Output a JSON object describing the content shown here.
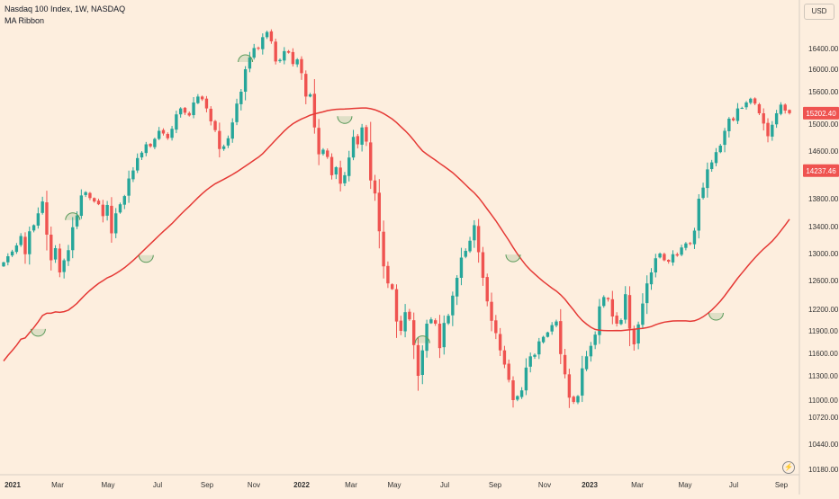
{
  "header": {
    "title": "Nasdaq 100 Index, 1W, NASDAQ",
    "indicator": "MA Ribbon"
  },
  "currency": "USD",
  "colors": {
    "background": "#fdeede",
    "up": "#26a69a",
    "down": "#ef5350",
    "ma": "#e53935",
    "marker": "#5a9a5a",
    "price_label": "#ef5350",
    "ma_label": "#ef5350"
  },
  "chart_data": {
    "type": "candlestick",
    "timeframe": "1W",
    "y_axis": {
      "ticks": [
        "10180.00",
        "10440.00",
        "10720.00",
        "11000.00",
        "11300.00",
        "11600.00",
        "11900.00",
        "12200.00",
        "12600.00",
        "13000.00",
        "13400.00",
        "13800.00",
        "14200.00",
        "14600.00",
        "15000.00",
        "15600.00",
        "16000.00",
        "16400.00"
      ],
      "range": [
        10180,
        16900
      ]
    },
    "x_axis": {
      "ticks": [
        "2021",
        "Mar",
        "May",
        "Jul",
        "Sep",
        "Nov",
        "2022",
        "Mar",
        "May",
        "Jul",
        "Sep",
        "Nov",
        "2023",
        "Mar",
        "May",
        "Jul",
        "Sep"
      ],
      "bold_ticks": [
        "2021",
        "2022",
        "2023"
      ]
    },
    "last_price_label": "15202.40",
    "ma_value_label": "14237.46",
    "closes": [
      12870,
      12960,
      13030,
      13120,
      13260,
      12990,
      13330,
      13420,
      13590,
      13760,
      13280,
      12900,
      13080,
      12720,
      12900,
      13050,
      13390,
      13560,
      13850,
      13900,
      13810,
      13760,
      13720,
      13550,
      13710,
      13300,
      13590,
      13720,
      13840,
      14110,
      14240,
      14470,
      14570,
      14700,
      14670,
      14780,
      14900,
      14860,
      14790,
      14930,
      15180,
      15290,
      15210,
      15160,
      15400,
      15510,
      15460,
      15290,
      15050,
      14910,
      14630,
      14670,
      14790,
      15030,
      15380,
      15600,
      16000,
      16230,
      16410,
      16400,
      16620,
      16720,
      16540,
      16150,
      16180,
      16350,
      16320,
      16100,
      16190,
      15930,
      15510,
      15550,
      14950,
      14540,
      14620,
      14490,
      14160,
      14300,
      14030,
      14160,
      14480,
      14810,
      14700,
      14950,
      14740,
      14080,
      13880,
      13330,
      12810,
      12560,
      12480,
      12030,
      11900,
      12160,
      12060,
      11710,
      11300,
      11640,
      12000,
      12060,
      12000,
      11670,
      12010,
      12110,
      12390,
      12640,
      12940,
      13040,
      13190,
      13420,
      13020,
      12640,
      12310,
      12040,
      11870,
      11640,
      11450,
      11250,
      11000,
      11050,
      11120,
      11410,
      11560,
      11580,
      11760,
      11820,
      11880,
      11980,
      12030,
      11590,
      11320,
      11030,
      10970,
      11050,
      11400,
      11560,
      11700,
      11850,
      12240,
      12370,
      12340,
      12100,
      12000,
      12050,
      12410,
      11930,
      11720,
      11990,
      12280,
      12560,
      12720,
      12930,
      13000,
      12900,
      12880,
      12990,
      12970,
      13090,
      13150,
      13150,
      13340,
      13800,
      13970,
      14260,
      14390,
      14580,
      14680,
      14900,
      15100,
      15070,
      15290,
      15300,
      15400,
      15470,
      15380,
      15200,
      15010,
      14820,
      14990,
      15200,
      15360,
      15250,
      15202
    ]
  }
}
